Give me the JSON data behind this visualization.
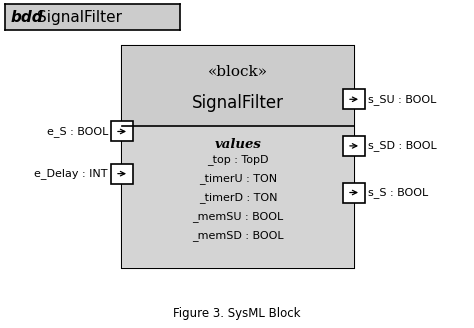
{
  "title_bdd": "bdd",
  "title_name": "SignalFilter",
  "block_stereotype": "«block»",
  "block_name": "SignalFilter",
  "values_label": "values",
  "values_items": [
    "_top : TopD",
    "_timerU : TON",
    "_timerD : TON",
    "_memSU : BOOL",
    "_memSD : BOOL"
  ],
  "inputs": [
    {
      "label": "e_S : BOOL",
      "yf": 0.385
    },
    {
      "label": "e_Delay : INT",
      "yf": 0.575
    }
  ],
  "outputs": [
    {
      "label": "s_SU : BOOL",
      "yf": 0.24
    },
    {
      "label": "s_SD : BOOL",
      "yf": 0.45
    },
    {
      "label": "s_S : BOOL",
      "yf": 0.66
    }
  ],
  "caption": "Figure 3. SysML Block",
  "gray_light": "#cccccc",
  "gray_mid": "#c0c0c0",
  "white": "#ffffff",
  "fig_bg": "#f0f0f0"
}
